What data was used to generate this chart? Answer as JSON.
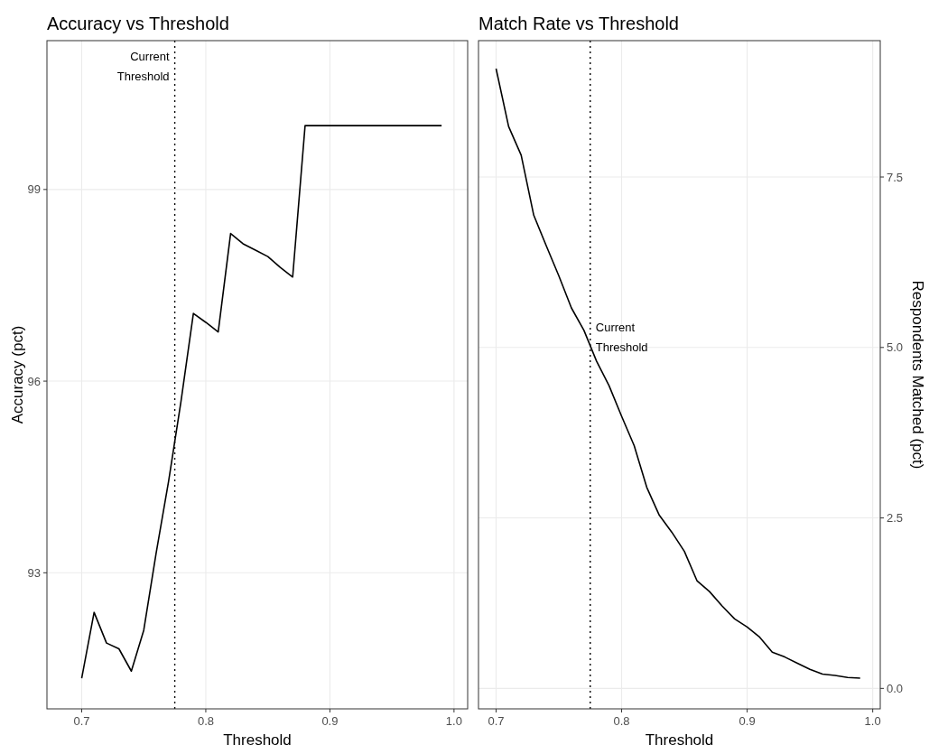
{
  "chart_data": [
    {
      "type": "line",
      "title": "Accuracy vs Threshold",
      "xlabel": "Threshold",
      "ylabel": "Accuracy (pct)",
      "x": [
        0.7,
        0.71,
        0.72,
        0.73,
        0.74,
        0.75,
        0.76,
        0.77,
        0.78,
        0.79,
        0.8,
        0.81,
        0.82,
        0.83,
        0.84,
        0.85,
        0.86,
        0.87,
        0.88,
        0.89,
        0.9,
        0.91,
        0.92,
        0.93,
        0.94,
        0.95,
        0.96,
        0.97,
        0.98,
        0.99
      ],
      "series": [
        {
          "color": "#000000",
          "values": [
            91.35,
            92.38,
            91.9,
            91.81,
            91.46,
            92.1,
            93.31,
            94.43,
            95.68,
            97.06,
            96.92,
            96.77,
            98.31,
            98.15,
            98.05,
            97.95,
            97.78,
            97.63,
            100,
            100,
            100,
            100,
            100,
            100,
            100,
            100,
            100,
            100,
            100,
            100
          ]
        }
      ],
      "xlim": [
        0.672,
        1.011
      ],
      "xticks": [
        {
          "value": 0.7,
          "label": "0.7"
        },
        {
          "value": 0.8,
          "label": "0.8"
        },
        {
          "value": 0.9,
          "label": "0.9"
        },
        {
          "value": 1.0,
          "label": "1.0"
        }
      ],
      "ylim": [
        90.87,
        101.33
      ],
      "yticks": [
        93,
        96,
        99
      ],
      "grid": true,
      "ref_lines": [
        {
          "axis": "x",
          "value": 0.775,
          "line_style": "dotted",
          "color": "#000000"
        }
      ],
      "annotations": [
        {
          "text": "Current\nThreshold",
          "x": 0.775,
          "y": 100.9
        }
      ]
    },
    {
      "type": "line",
      "title": "Match Rate vs Threshold",
      "xlabel": "Threshold",
      "y2label": "Respondents Matched (pct)",
      "x": [
        0.7,
        0.71,
        0.72,
        0.73,
        0.74,
        0.75,
        0.76,
        0.77,
        0.78,
        0.79,
        0.8,
        0.81,
        0.82,
        0.83,
        0.84,
        0.85,
        0.86,
        0.87,
        0.88,
        0.89,
        0.9,
        0.91,
        0.92,
        0.93,
        0.94,
        0.95,
        0.96,
        0.97,
        0.98,
        0.99
      ],
      "series": [
        {
          "color": "#000000",
          "axis": "y2",
          "values": [
            9.09,
            8.24,
            7.82,
            6.94,
            6.49,
            6.05,
            5.58,
            5.25,
            4.8,
            4.44,
            3.99,
            3.56,
            2.95,
            2.54,
            2.29,
            2.01,
            1.58,
            1.42,
            1.21,
            1.02,
            0.9,
            0.75,
            0.53,
            0.46,
            0.37,
            0.28,
            0.21,
            0.19,
            0.16,
            0.15
          ]
        }
      ],
      "xlim": [
        0.686,
        1.006
      ],
      "xticks": [
        {
          "value": 0.7,
          "label": "0.7"
        },
        {
          "value": 0.8,
          "label": "0.8"
        },
        {
          "value": 0.9,
          "label": "0.9"
        },
        {
          "value": 1.0,
          "label": "1.0"
        }
      ],
      "y2lim": [
        -0.3,
        9.5
      ],
      "y2ticks": [
        {
          "value": 0,
          "label": "0.0"
        },
        2.5,
        {
          "value": 5,
          "label": "5.0"
        },
        7.5
      ],
      "grid": true,
      "ref_lines": [
        {
          "axis": "x",
          "value": 0.775,
          "line_style": "dotted",
          "color": "#000000"
        }
      ],
      "annotations": [
        "Current\nThreshold"
      ]
    }
  ]
}
